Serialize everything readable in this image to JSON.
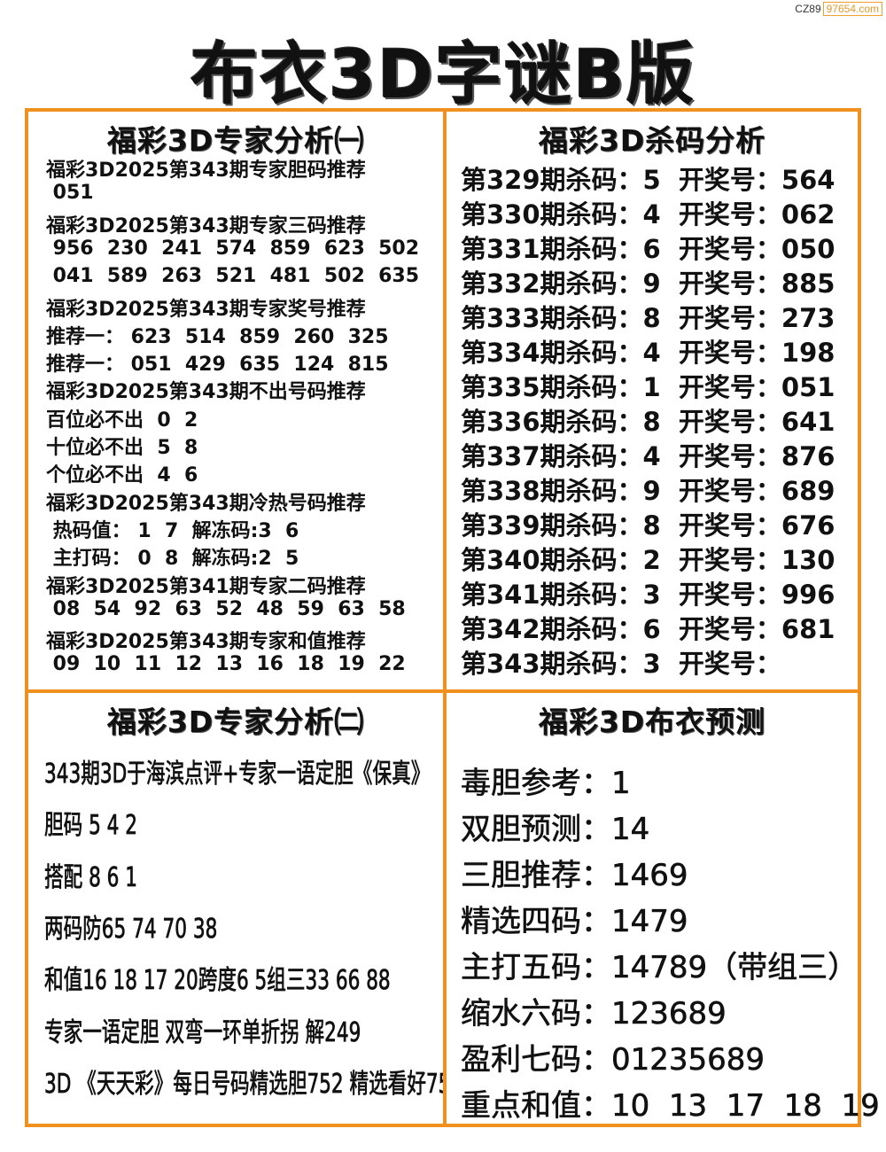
{
  "watermark": {
    "prefix": "CZ89",
    "domain": "97654.com"
  },
  "title": "布衣3D字谜B版",
  "panels": {
    "expert1": {
      "heading": "福彩3D专家分析㈠",
      "lines": [
        "福彩3D2025第343期专家胆码推荐",
        " 051",
        "福彩3D2025第343期专家三码推荐",
        " 956  230  241  574  859  623  502",
        " 041  589  263  521  481  502  635",
        "福彩3D2025第343期专家奖号推荐",
        "推荐一： 623  514  859  260  325",
        "推荐一： 051  429  635  124  815",
        "福彩3D2025第343期不出号码推荐",
        "百位必不出  0  2",
        "十位必不出  5  8",
        "个位必不出  4  6",
        "福彩3D2025第343期冷热号码推荐",
        " 热码值： 1  7  解冻码:3  6",
        " 主打码： 0  8  解冻码:2  5",
        "福彩3D2025第341期专家二码推荐",
        " 08  54  92  63  52  48  59  63  58",
        "福彩3D2025第343期专家和值推荐",
        " 09  10  11  12  13  16  18  19  22"
      ]
    },
    "kill": {
      "heading": "福彩3D杀码分析",
      "lines": [
        "第329期杀码：5  开奖号：564",
        "第330期杀码：4  开奖号：062",
        "第331期杀码：6  开奖号：050",
        "第332期杀码：9  开奖号：885",
        "第333期杀码：8  开奖号：273",
        "第334期杀码：4  开奖号：198",
        "第335期杀码：1  开奖号：051",
        "第336期杀码：8  开奖号：641",
        "第337期杀码：4  开奖号：876",
        "第338期杀码：9  开奖号：689",
        "第339期杀码：8  开奖号：676",
        "第340期杀码：2  开奖号：130",
        "第341期杀码：3  开奖号：996",
        "第342期杀码：6  开奖号：681",
        "第343期杀码：3  开奖号："
      ]
    },
    "expert2": {
      "heading": "福彩3D专家分析㈡",
      "lines": [
        "343期3D于海滨点评+专家一语定胆《保真》",
        "胆码 5 4 2",
        "搭配 8 6 1",
        "两码防65 74 70 38",
        "和值16 18 17 20跨度6 5组三33 66 88",
        "专家一语定胆 双弯一环单折拐 解249",
        "3D 《天天彩》每日号码精选胆752 精选看好75"
      ]
    },
    "predict": {
      "heading": "福彩3D布衣预测",
      "lines": [
        "毒胆参考：1",
        "双胆预测：14",
        "三胆推荐：1469",
        "精选四码：1479",
        "主打五码：14789（带组三）",
        "缩水六码：123689",
        "盈利七码：01235689",
        "重点和值：10  13  17  18  19"
      ]
    }
  },
  "colors": {
    "border": "#f0901e",
    "text": "#111111"
  }
}
